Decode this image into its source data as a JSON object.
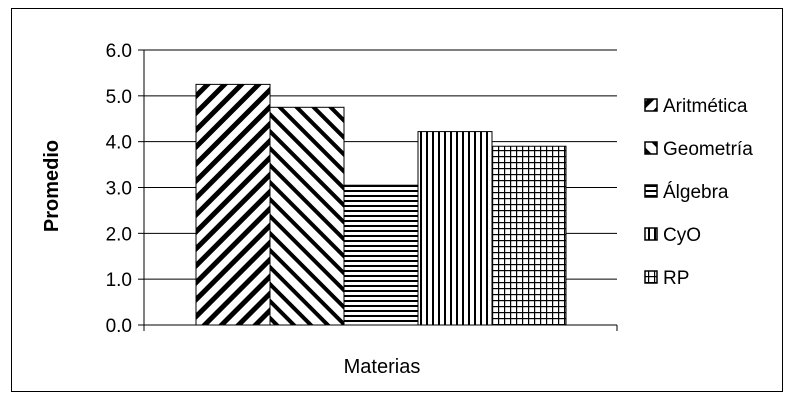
{
  "chart_data": {
    "type": "bar",
    "title": "",
    "xlabel": "Materias",
    "ylabel": "Promedio",
    "ylim": [
      0,
      6
    ],
    "yticks": [
      "0.0",
      "1.0",
      "2.0",
      "3.0",
      "4.0",
      "5.0",
      "6.0"
    ],
    "grid": "horizontal",
    "legend": "right",
    "series": [
      {
        "name": "Aritmética",
        "value": 5.25,
        "pattern": "diag-down"
      },
      {
        "name": "Geometría",
        "value": 4.75,
        "pattern": "diag-up"
      },
      {
        "name": "Álgebra",
        "value": 3.05,
        "pattern": "horizontal"
      },
      {
        "name": "CyO",
        "value": 4.22,
        "pattern": "vertical"
      },
      {
        "name": "RP",
        "value": 3.9,
        "pattern": "grid"
      }
    ]
  }
}
